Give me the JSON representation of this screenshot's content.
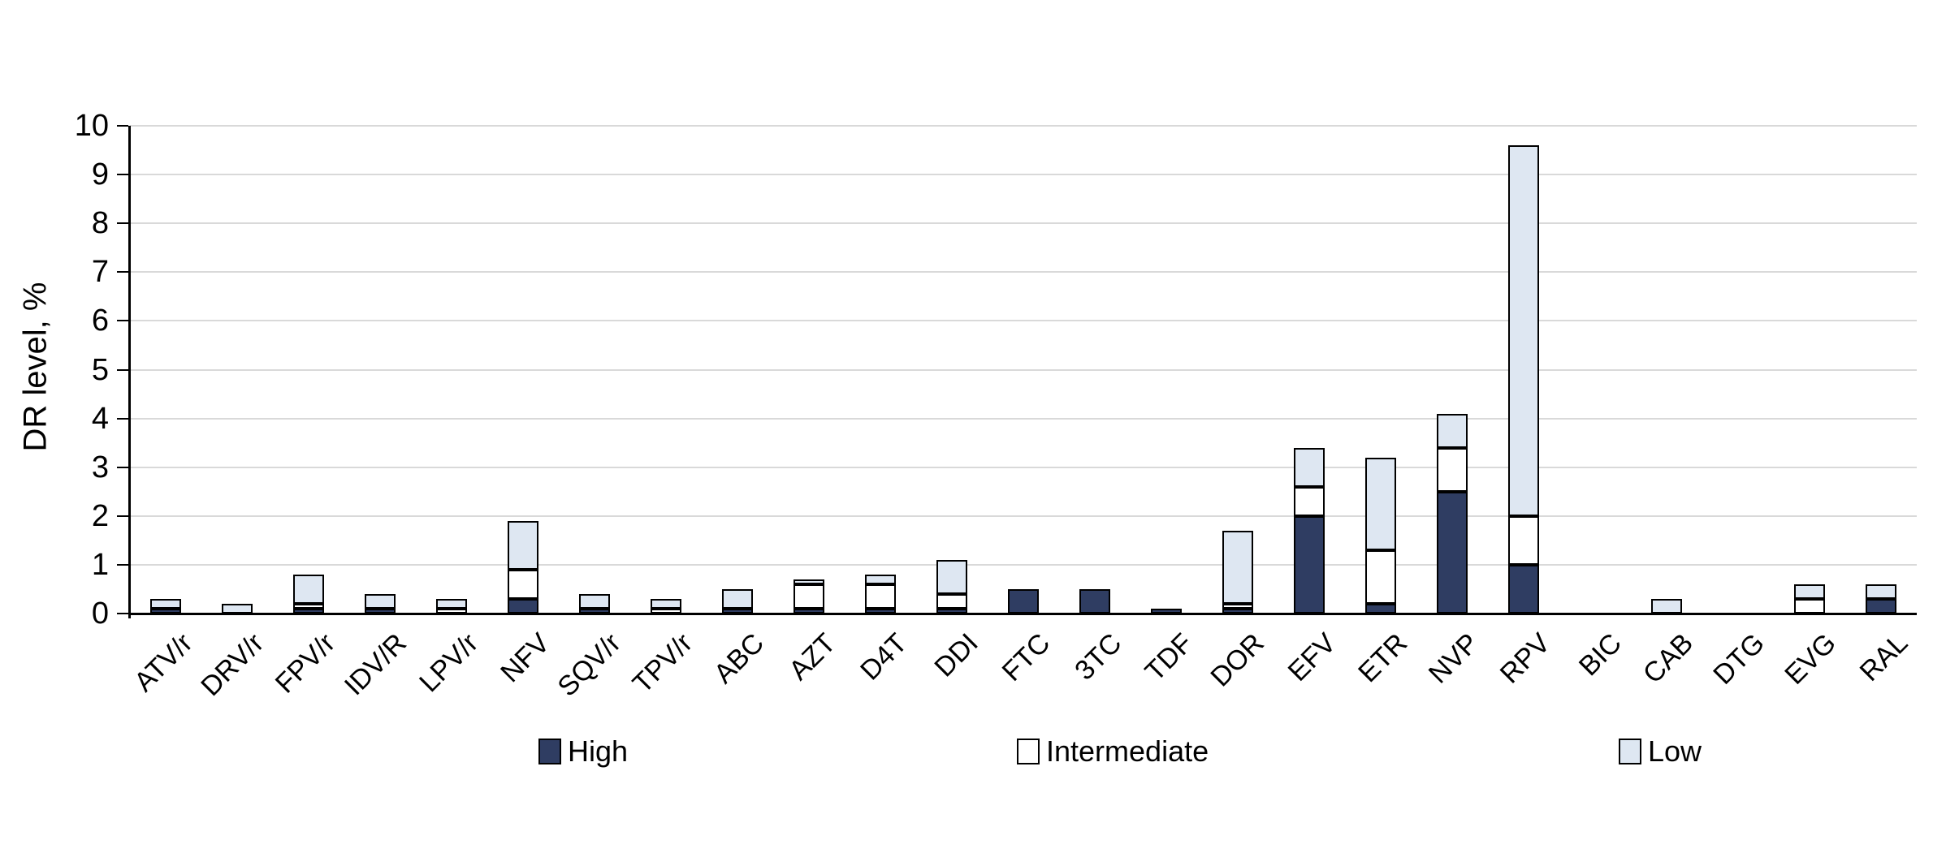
{
  "chart_data": {
    "type": "bar",
    "stacked": true,
    "title": "",
    "xlabel": "",
    "ylabel": "DR level, %",
    "ylim": [
      0,
      10
    ],
    "y_ticks": [
      0,
      1,
      2,
      3,
      4,
      5,
      6,
      7,
      8,
      9,
      10
    ],
    "grid": true,
    "legend_position": "bottom",
    "categories": [
      "ATV/r",
      "DRV/r",
      "FPV/r",
      "IDV/R",
      "LPV/r",
      "NFV",
      "SQV/r",
      "TPV/r",
      "ABC",
      "AZT",
      "D4T",
      "DDI",
      "FTC",
      "3TC",
      "TDF",
      "DOR",
      "EFV",
      "ETR",
      "NVP",
      "RPV",
      "BIC",
      "CAB",
      "DTG",
      "EVG",
      "RAL"
    ],
    "series": [
      {
        "name": "High",
        "color": "#2F3D62",
        "values": [
          0.1,
          0,
          0.1,
          0.1,
          0,
          0.3,
          0.1,
          0,
          0.1,
          0.1,
          0.1,
          0.1,
          0.5,
          0.5,
          0.1,
          0.1,
          2.0,
          0.2,
          2.5,
          1.0,
          0,
          0,
          0,
          0,
          0.3
        ]
      },
      {
        "name": "Intermediate",
        "color": "#FFFFFF",
        "values": [
          0,
          0,
          0.1,
          0,
          0.1,
          0.6,
          0,
          0.1,
          0,
          0.5,
          0.5,
          0.3,
          0,
          0,
          0,
          0.1,
          0.6,
          1.1,
          0.9,
          1.0,
          0,
          0,
          0,
          0.3,
          0
        ]
      },
      {
        "name": "Low",
        "color": "#DEE7F2",
        "values": [
          0.2,
          0.2,
          0.6,
          0.3,
          0.2,
          1.0,
          0.3,
          0.2,
          0.4,
          0.1,
          0.2,
          0.7,
          0,
          0,
          0,
          1.5,
          0.8,
          1.9,
          0.7,
          7.6,
          0,
          0.3,
          0,
          0.3,
          0.3
        ]
      }
    ],
    "totals": [
      0.3,
      0.2,
      0.8,
      0.4,
      0.3,
      1.9,
      0.4,
      0.3,
      0.5,
      0.7,
      0.8,
      1.1,
      0.5,
      0.5,
      0.1,
      1.7,
      3.4,
      3.2,
      4.1,
      9.6,
      0,
      0.3,
      0,
      0.6,
      0.6
    ]
  },
  "colors": {
    "high": "#2F3D62",
    "intermediate": "#FFFFFF",
    "low": "#DEE7F2",
    "segment_border": "#000000",
    "gridline": "#D9D9D9",
    "axis": "#000000",
    "text": "#000000"
  },
  "legend": {
    "items": [
      "High",
      "Intermediate",
      "Low"
    ]
  }
}
